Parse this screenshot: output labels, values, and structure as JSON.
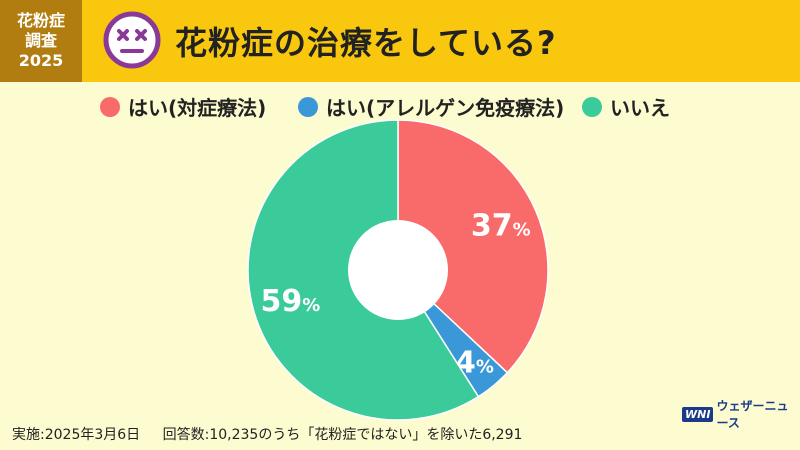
{
  "header": {
    "badge_line1": "花粉症",
    "badge_line2": "調査",
    "badge_line3": "2025",
    "title": "花粉症の治療をしている?",
    "icon": "dizzy-face-icon"
  },
  "colors": {
    "header_bg": "#f9c80e",
    "badge_bg": "#b27d10",
    "page_bg": "#fdfbd0",
    "red": "#f96a6a",
    "blue": "#3a98d8",
    "green": "#3bcb9a",
    "icon_purple": "#8a3a96"
  },
  "chart_data": {
    "type": "pie",
    "title": "花粉症の治療をしている?",
    "donut": true,
    "legend_position": "top",
    "slices": [
      {
        "label": "はい(対症療法)",
        "value": 37,
        "display": "37",
        "color": "#f96a6a"
      },
      {
        "label": "はい(アレルゲン免疫療法)",
        "value": 4,
        "display": "4",
        "color": "#3a98d8"
      },
      {
        "label": "いいえ",
        "value": 59,
        "display": "59",
        "color": "#3bcb9a"
      }
    ],
    "unit": "%"
  },
  "footnote": {
    "date": "実施:2025年3月6日",
    "respondents": "回答数:10,235のうち「花粉症ではない」を除いた6,291"
  },
  "logo": {
    "mark": "WNI",
    "text": "ウェザーニュース"
  }
}
